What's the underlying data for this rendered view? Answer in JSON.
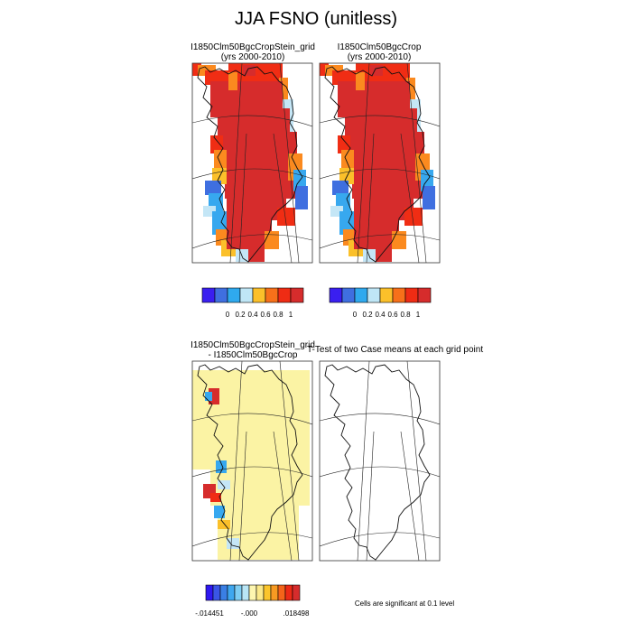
{
  "title": "JJA FSNO (unitless)",
  "panels": {
    "top_left": {
      "line1": "I1850Clm50BgcCropStein_grid",
      "line2": "(yrs 2000-2010)"
    },
    "top_right": {
      "line1": "I1850Clm50BgcCrop",
      "line2": "(yrs 2000-2010)"
    },
    "bottom_left": {
      "line1": "I1850Clm50BgcCropStein_grid",
      "line2": "- I1850Clm50BgcCrop"
    },
    "bottom_right": {
      "line1": "T-Test of two Case means at each grid point"
    }
  },
  "colorbar_top": {
    "colors": [
      "#3a1ff0",
      "#3f6fe0",
      "#2fa9ee",
      "#bfe6f6",
      "#fbc02a",
      "#f7701a",
      "#ef2c14",
      "#d62c2c"
    ],
    "labels": [
      "0",
      "0.2",
      "0.4",
      "0.6",
      "0.8",
      "1"
    ]
  },
  "colorbar_bottom": {
    "colors": [
      "#2f18f0",
      "#3a55e6",
      "#3a7fe4",
      "#3fa7ef",
      "#7fcdf3",
      "#b9e6f6",
      "#fdf6b0",
      "#fbe98a",
      "#fbc52c",
      "#f89a22",
      "#f4641a",
      "#ec2a16",
      "#d62c2c"
    ],
    "labels": [
      "-.014451",
      "-.000",
      ".018498"
    ]
  },
  "note": "Cells are significant at 0.1 level",
  "map_colors": {
    "ice": "#d62c2c",
    "high": "#f02d14",
    "orange": "#fb8a1f",
    "yellow": "#fbc02a",
    "lightblue": "#c4e6f6",
    "midblue": "#37a8ef",
    "blue": "#3f6fe0",
    "diff": "#fbf3a4"
  }
}
